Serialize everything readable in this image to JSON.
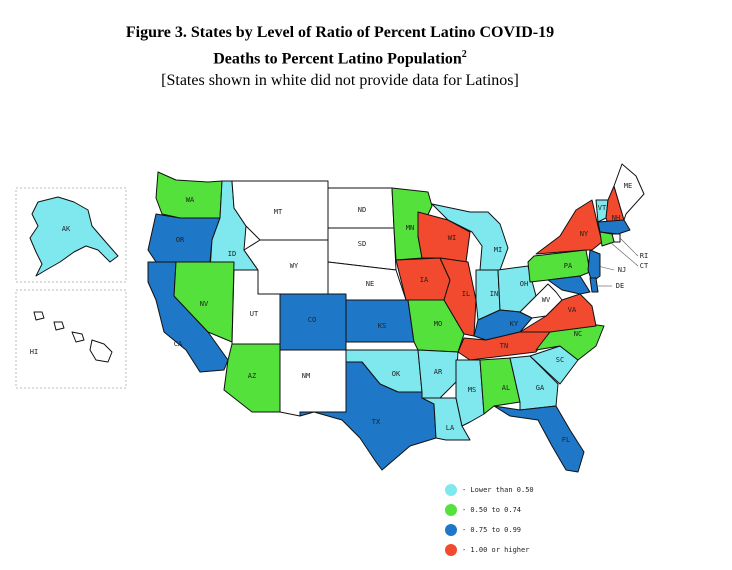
{
  "title": {
    "line1": "Figure 3. States by Level of Ratio of Percent Latino COVID-19",
    "line2": "Deaths to Percent Latino Population",
    "footnote": "2",
    "note": "[States shown in white did not provide data for Latinos]"
  },
  "colors": {
    "lt050": "#7fe8ef",
    "b050_074": "#55e13c",
    "b075_099": "#1f77c8",
    "ge100": "#f24a2e",
    "nodata": "#ffffff",
    "coast": "#e0433f"
  },
  "legend": [
    {
      "key": "lt050",
      "label": "- Lower than 0.50"
    },
    {
      "key": "b050_074",
      "label": "- 0.50 to 0.74"
    },
    {
      "key": "b075_099",
      "label": "- 0.75 to 0.99"
    },
    {
      "key": "ge100",
      "label": "- 1.00 or higher"
    }
  ],
  "states": {
    "AK": "lt050",
    "HI": "nodata",
    "WA": "b050_074",
    "OR": "b075_099",
    "CA": "b075_099",
    "ID": "lt050",
    "NV": "b050_074",
    "UT": "nodata",
    "AZ": "b050_074",
    "MT": "nodata",
    "WY": "nodata",
    "CO": "b075_099",
    "NM": "nodata",
    "ND": "nodata",
    "SD": "nodata",
    "NE": "nodata",
    "KS": "b075_099",
    "OK": "lt050",
    "TX": "b075_099",
    "MN": "b050_074",
    "IA": "ge100",
    "MO": "b050_074",
    "AR": "lt050",
    "LA": "lt050",
    "WI": "ge100",
    "IL": "ge100",
    "MI": "lt050",
    "IN": "lt050",
    "OH": "lt050",
    "KY": "b075_099",
    "TN": "ge100",
    "MS": "lt050",
    "AL": "b050_074",
    "GA": "lt050",
    "FL": "b075_099",
    "SC": "lt050",
    "NC": "b050_074",
    "VA": "ge100",
    "WV": "nodata",
    "PA": "b050_074",
    "NY": "ge100",
    "VT": "lt050",
    "NH": "ge100",
    "ME": "nodata",
    "MA": "b075_099",
    "RI": "nodata",
    "CT": "b050_074",
    "NJ": "b075_099",
    "DE": "b075_099",
    "MD": "b075_099"
  },
  "labels": {
    "AK": "AK",
    "HI": "HI",
    "WA": "WA",
    "OR": "OR",
    "CA": "CA",
    "ID": "ID",
    "NV": "NV",
    "UT": "UT",
    "AZ": "AZ",
    "MT": "MT",
    "WY": "WY",
    "CO": "CO",
    "NM": "NM",
    "ND": "ND",
    "SD": "SD",
    "NE": "NE",
    "KS": "KS",
    "OK": "OK",
    "TX": "TX",
    "MN": "MN",
    "IA": "IA",
    "MO": "MO",
    "AR": "AR",
    "LA": "LA",
    "WI": "WI",
    "IL": "IL",
    "MI": "MI",
    "IN": "IN",
    "OH": "OH",
    "KY": "KY",
    "TN": "TN",
    "MS": "MS",
    "AL": "AL",
    "GA": "GA",
    "FL": "FL",
    "SC": "SC",
    "NC": "NC",
    "VA": "VA",
    "WV": "WV",
    "PA": "PA",
    "NY": "NY",
    "VT": "VT",
    "NH": "NH",
    "ME": "ME",
    "RI": "RI",
    "CT": "CT",
    "NJ": "NJ",
    "DE": "DE"
  }
}
